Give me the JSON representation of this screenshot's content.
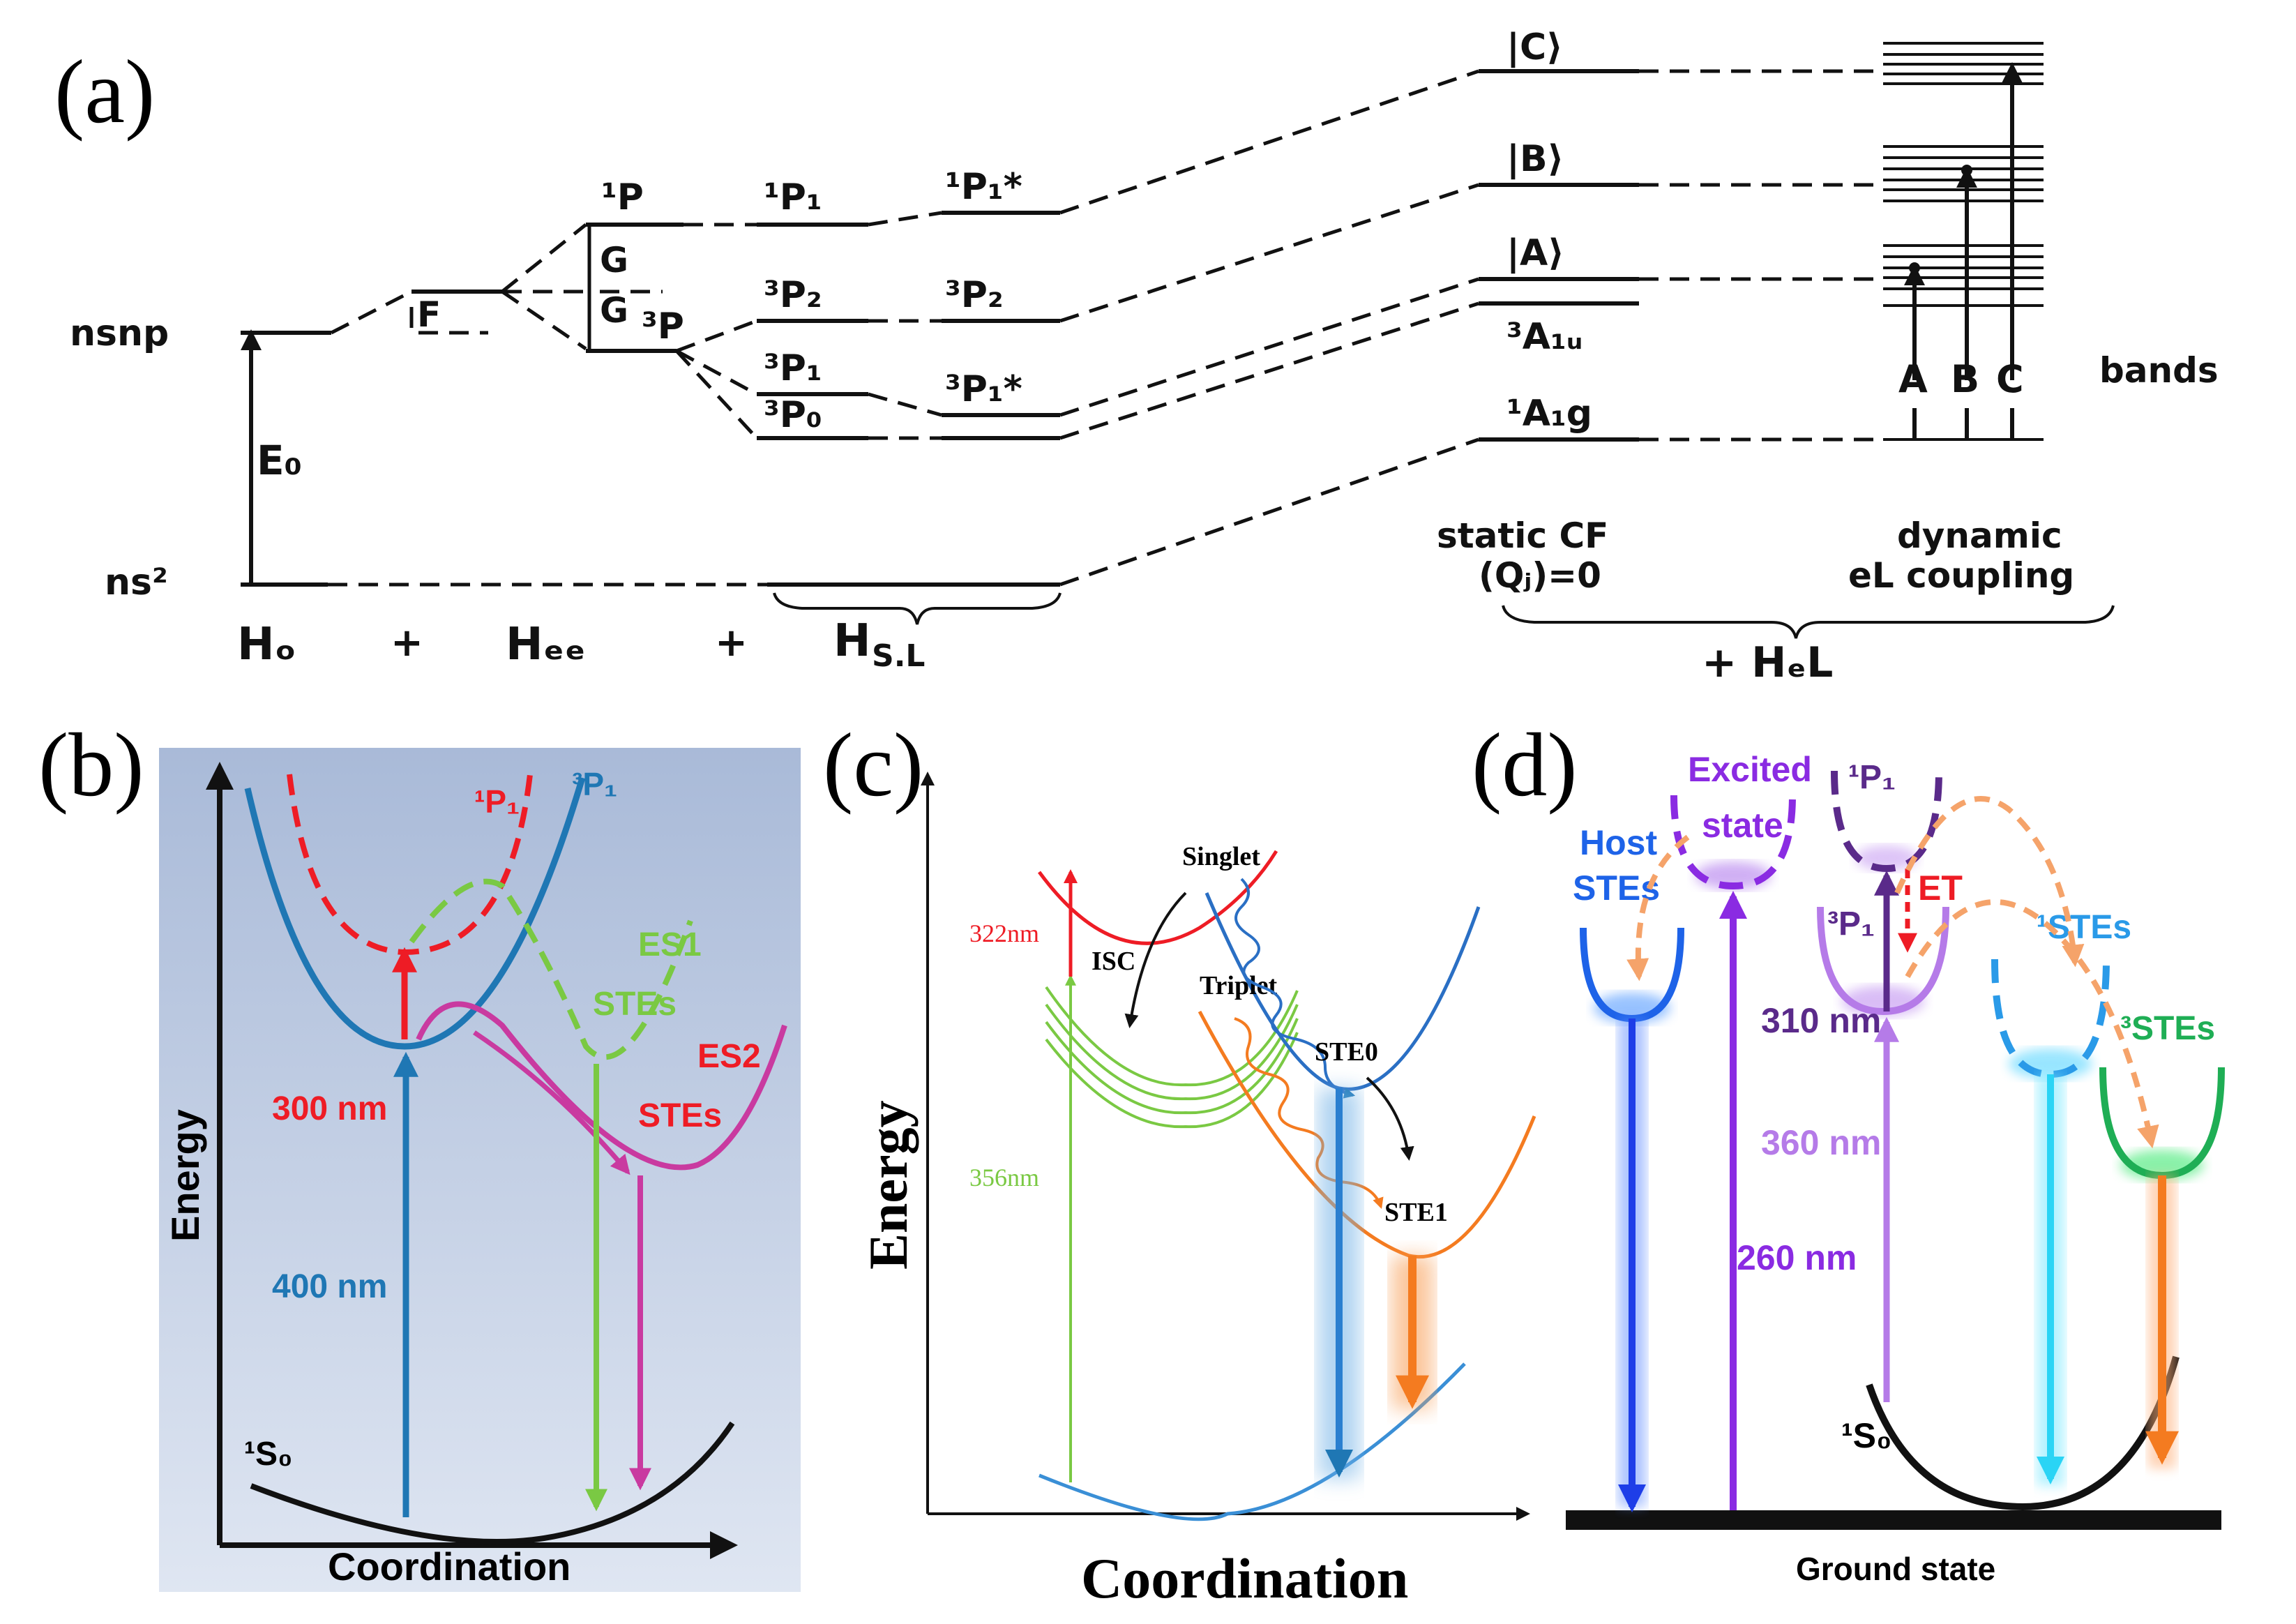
{
  "panels": {
    "a": {
      "label": "(a)",
      "levels": {
        "nsnp": "nsnp",
        "ns2": "ns²",
        "E0": "E₀",
        "F": "F",
        "G1": "G",
        "G2": "G",
        "P1": "¹P",
        "P3": "³P",
        "P1_1": "¹P₁",
        "P3_2": "³P₂",
        "P3_1": "³P₁",
        "P3_0": "³P₀",
        "P1_1s": "¹P₁*",
        "P3_2b": "³P₂",
        "P3_1s": "³P₁*",
        "C": "|C⟩",
        "B": "|B⟩",
        "A": "|A⟩",
        "A1u": "³A₁ᵤ",
        "A1g": "¹A₁g"
      },
      "band_letters": [
        "A",
        "B",
        "C"
      ],
      "bands_label": "bands",
      "hamiltonian": {
        "H0": "Hₒ",
        "plus1": "+",
        "Hee": "Hₑₑ",
        "plus2": "+",
        "HSL": "H",
        "HSL_sub": "S.L",
        "HeL": "+ HₑL"
      },
      "static_cf": "static CF",
      "static_q": "(Qⱼ)=0",
      "dynamic": "dynamic",
      "dynamic2": "eL coupling"
    },
    "b": {
      "label": "(b)",
      "y_axis": "Energy",
      "x_axis": "Coordination",
      "P1": "¹P₁",
      "P3": "³P₁",
      "ES1": "ES1",
      "STEs1": "STEs",
      "ES2": "ES2",
      "STEs2": "STEs",
      "nm300": "300 nm",
      "nm400": "400 nm",
      "S0": "¹S₀",
      "colors": {
        "blue": "#1f77b4",
        "red": "#ee1c25",
        "green": "#7ac943",
        "magenta": "#c93aa0",
        "bg": "#b7c6df"
      }
    },
    "c": {
      "label": "(c)",
      "y_axis": "Energy",
      "x_axis": "Coordination",
      "singlet": "Singlet",
      "triplet": "Triplet",
      "isc": "ISC",
      "ste0": "STE0",
      "ste1": "STE1",
      "nm322": "322nm",
      "nm356": "356nm"
    },
    "d": {
      "label": "(d)",
      "host1": "Host",
      "host2": "STEs",
      "excited1": "Excited",
      "excited2": "state",
      "P1": "¹P₁",
      "P3": "³P₁",
      "et": "ET",
      "ste1": "¹STEs",
      "ste3": "³STEs",
      "nm310": "310 nm",
      "nm360": "360 nm",
      "nm260": "260 nm",
      "S0": "¹S₀",
      "ground": "Ground state"
    }
  }
}
